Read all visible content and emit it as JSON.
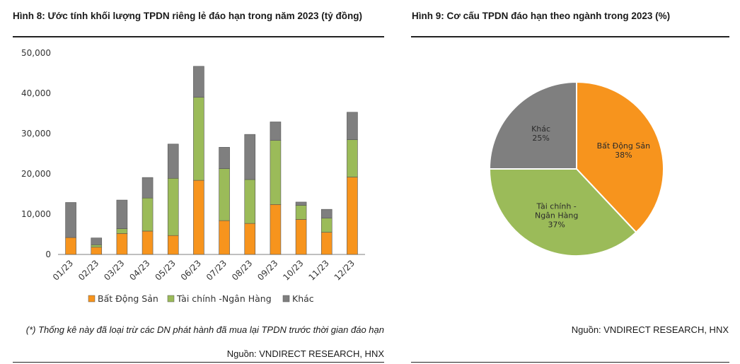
{
  "left": {
    "title": "Hình 8: Ước tính khối lượng TPDN riêng lẻ đáo hạn trong năm 2023 (tỷ đồng)",
    "note": "(*) Thống kê này đã loại trừ các DN phát hành đã mua lại TPDN trước thời gian đáo hạn",
    "source": "Nguồn: VNDIRECT RESEARCH, HNX"
  },
  "right": {
    "title": "Hình 9: Cơ cấu TPDN đáo hạn theo ngành trong 2023 (%)",
    "source": "Nguồn: VNDIRECT RESEARCH, HNX"
  },
  "chart_data": [
    {
      "type": "bar",
      "stacked": true,
      "categories": [
        "01/23",
        "02/23",
        "03/23",
        "04/23",
        "05/23",
        "06/23",
        "07/23",
        "08/23",
        "09/23",
        "10/23",
        "11/23",
        "12/23"
      ],
      "series": [
        {
          "name": "Bất Động Sản",
          "color": "#f7941d",
          "values": [
            4200,
            1800,
            5200,
            5800,
            4700,
            18400,
            8400,
            7700,
            12400,
            8700,
            5500,
            19200
          ]
        },
        {
          "name": "Tài chính -Ngân Hàng",
          "color": "#9bbb59",
          "values": [
            0,
            600,
            1200,
            8200,
            14200,
            20600,
            12900,
            10900,
            15900,
            3500,
            3500,
            9300
          ]
        },
        {
          "name": "Khác",
          "color": "#7f7f7f",
          "values": [
            8700,
            1700,
            7100,
            5100,
            8500,
            7700,
            5300,
            11200,
            4600,
            800,
            2200,
            6800
          ]
        }
      ],
      "yticks": [
        "0",
        "10,000",
        "20,000",
        "30,000",
        "40,000",
        "50,000"
      ],
      "ylim": [
        0,
        50000
      ],
      "legend_position": "bottom"
    },
    {
      "type": "pie",
      "slices": [
        {
          "label": "Bất Động Sản",
          "value": 38,
          "text": "38%",
          "color": "#f7941d"
        },
        {
          "label": "Tài chính - Ngân Hàng",
          "value": 37,
          "text": "37%",
          "color": "#9bbb59"
        },
        {
          "label": "Khác",
          "value": 25,
          "text": "25%",
          "color": "#7f7f7f"
        }
      ]
    }
  ]
}
